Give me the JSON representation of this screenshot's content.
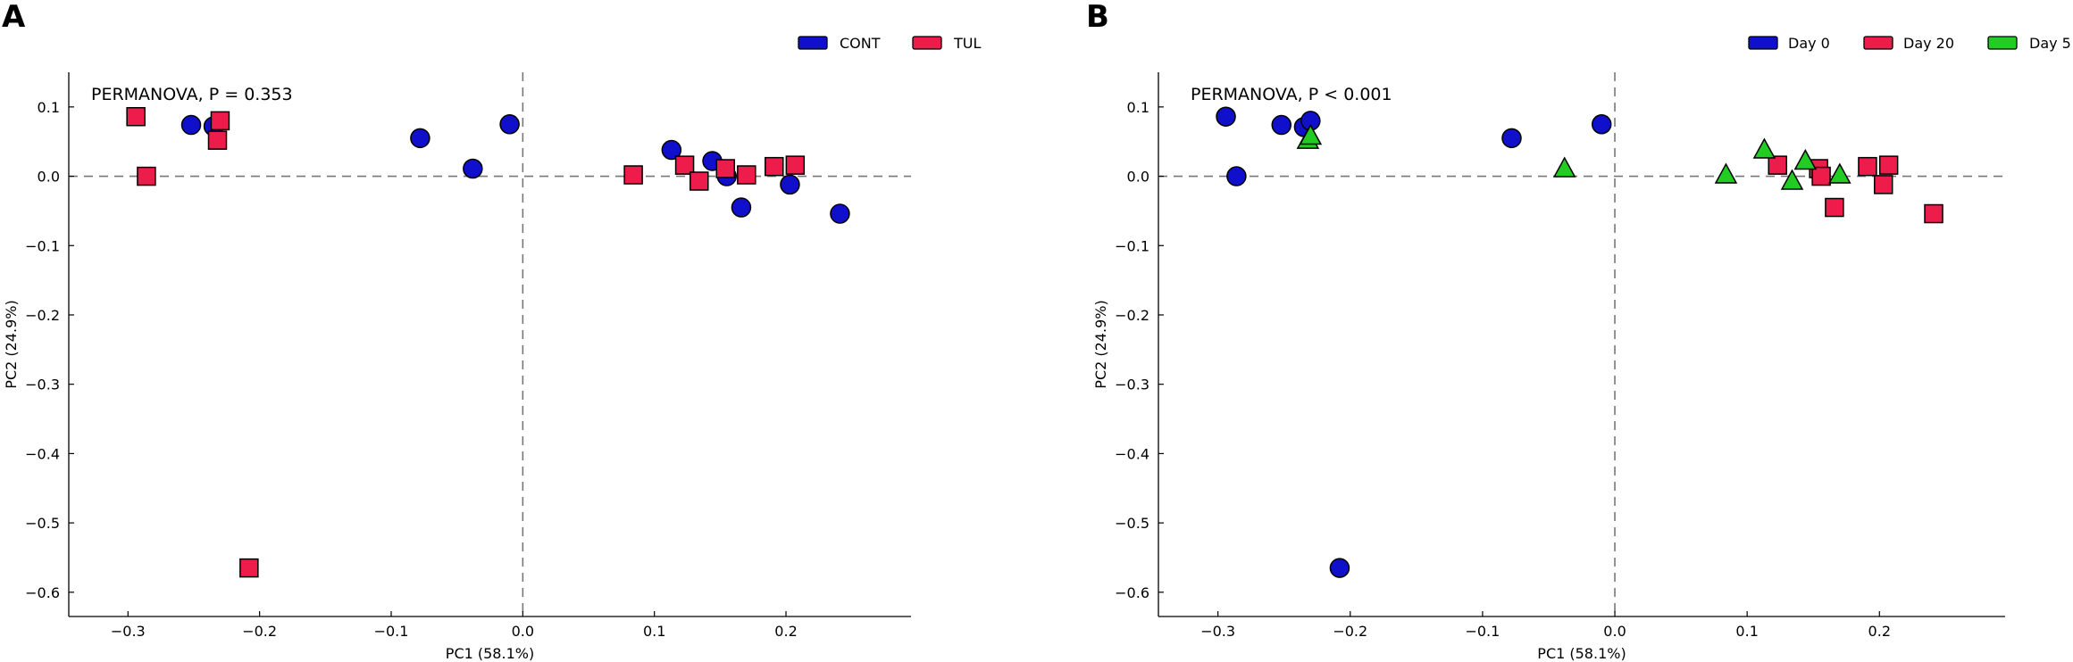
{
  "chart_data": [
    {
      "panel_label": "A",
      "type": "scatter",
      "annotation": "PERMANOVA, P = 0.353",
      "xlabel": "PC1 (58.1%)",
      "ylabel": "PC2 (24.9%)",
      "xlim": [
        -0.345,
        0.295
      ],
      "ylim": [
        -0.635,
        0.15
      ],
      "xticks": [
        -0.3,
        -0.2,
        -0.1,
        0.0,
        0.1,
        0.2
      ],
      "xtick_labels": [
        "−0.3",
        "−0.2",
        "−0.1",
        "0.0",
        "0.1",
        "0.2"
      ],
      "yticks": [
        0.1,
        0.0,
        -0.1,
        -0.2,
        -0.3,
        -0.4,
        -0.5,
        -0.6
      ],
      "ytick_labels": [
        "0.1",
        "0.0",
        "−0.1",
        "−0.2",
        "−0.3",
        "−0.4",
        "−0.5",
        "−0.6"
      ],
      "reference_lines": {
        "x": 0,
        "y": 0,
        "style": "dashed"
      },
      "legend_position": "top-right",
      "series": [
        {
          "name": "CONT",
          "marker": "circle",
          "color": "#1010cc",
          "x": [
            -0.252,
            -0.235,
            -0.078,
            -0.038,
            -0.01,
            0.113,
            0.144,
            0.155,
            0.166,
            0.203,
            0.241
          ],
          "y": [
            0.074,
            0.072,
            0.055,
            0.011,
            0.075,
            0.038,
            0.022,
            0.0,
            -0.045,
            -0.012,
            -0.054
          ]
        },
        {
          "name": "TUL",
          "marker": "square",
          "color": "#ee1c4b",
          "x": [
            -0.294,
            -0.286,
            -0.232,
            -0.23,
            -0.208,
            0.084,
            0.123,
            0.134,
            0.154,
            0.17,
            0.191,
            0.207
          ],
          "y": [
            0.086,
            0.0,
            0.052,
            0.08,
            -0.565,
            0.002,
            0.016,
            -0.007,
            0.011,
            0.002,
            0.014,
            0.016
          ]
        }
      ]
    },
    {
      "panel_label": "B",
      "type": "scatter",
      "annotation": "PERMANOVA, P < 0.001",
      "xlabel": "PC1 (58.1%)",
      "ylabel": "PC2 (24.9%)",
      "xlim": [
        -0.345,
        0.295
      ],
      "ylim": [
        -0.635,
        0.15
      ],
      "xticks": [
        -0.3,
        -0.2,
        -0.1,
        0.0,
        0.1,
        0.2
      ],
      "xtick_labels": [
        "−0.3",
        "−0.2",
        "−0.1",
        "0.0",
        "0.1",
        "0.2"
      ],
      "yticks": [
        0.1,
        0.0,
        -0.1,
        -0.2,
        -0.3,
        -0.4,
        -0.5,
        -0.6
      ],
      "ytick_labels": [
        "0.1",
        "0.0",
        "−0.1",
        "−0.2",
        "−0.3",
        "−0.4",
        "−0.5",
        "−0.6"
      ],
      "reference_lines": {
        "x": 0,
        "y": 0,
        "style": "dashed"
      },
      "legend_position": "top-right",
      "series": [
        {
          "name": "Day 0",
          "marker": "circle",
          "color": "#1010cc",
          "x": [
            -0.294,
            -0.286,
            -0.252,
            -0.235,
            -0.23,
            -0.208,
            -0.078,
            -0.01
          ],
          "y": [
            0.086,
            0.0,
            0.074,
            0.071,
            0.08,
            -0.565,
            0.055,
            0.075
          ]
        },
        {
          "name": "Day 20",
          "marker": "square",
          "color": "#ee1c4b",
          "x": [
            0.123,
            0.154,
            0.156,
            0.166,
            0.191,
            0.203,
            0.207,
            0.241
          ],
          "y": [
            0.016,
            0.011,
            0.0,
            -0.045,
            0.014,
            -0.012,
            0.016,
            -0.054
          ]
        },
        {
          "name": "Day 5",
          "marker": "triangle",
          "color": "#22cc22",
          "x": [
            -0.232,
            -0.23,
            -0.038,
            0.084,
            0.113,
            0.134,
            0.144,
            0.17
          ],
          "y": [
            0.052,
            0.058,
            0.011,
            0.002,
            0.038,
            -0.007,
            0.022,
            0.002
          ]
        }
      ]
    }
  ]
}
